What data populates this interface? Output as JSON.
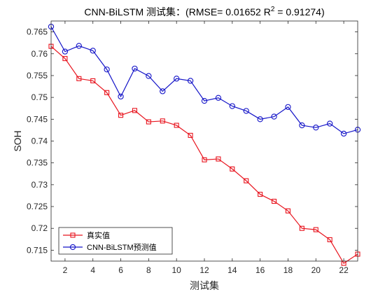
{
  "chart_data": {
    "type": "line",
    "title": "CNN-BiLSTM 测试集：(RMSE= 0.01652 R",
    "title_sup": "2",
    "title_end": " = 0.91274)",
    "xlabel": "测试集",
    "ylabel": "SOH",
    "xlim": [
      1,
      23
    ],
    "ylim": [
      0.7125,
      0.7675
    ],
    "xticks": [
      2,
      4,
      6,
      8,
      10,
      12,
      14,
      16,
      18,
      20,
      22
    ],
    "yticks": [
      0.715,
      0.72,
      0.725,
      0.73,
      0.735,
      0.74,
      0.745,
      0.75,
      0.755,
      0.76,
      0.765
    ],
    "ytick_labels": [
      "0.715",
      "0.72",
      "0.725",
      "0.73",
      "0.735",
      "0.74",
      "0.745",
      "0.75",
      "0.755",
      "0.76",
      "0.765"
    ],
    "grid": false,
    "legend_position": "bottom-left",
    "x": [
      1,
      2,
      3,
      4,
      5,
      6,
      7,
      8,
      9,
      10,
      11,
      12,
      13,
      14,
      15,
      16,
      17,
      18,
      19,
      20,
      21,
      22,
      23
    ],
    "series": [
      {
        "name": "真实值",
        "color": "#e8141e",
        "marker": "square",
        "values": [
          0.7617,
          0.7589,
          0.7543,
          0.7538,
          0.7511,
          0.7459,
          0.747,
          0.7444,
          0.7446,
          0.7436,
          0.7413,
          0.7357,
          0.7359,
          0.7336,
          0.7309,
          0.7278,
          0.7262,
          0.724,
          0.72,
          0.7197,
          0.7174,
          0.712,
          0.7141
        ]
      },
      {
        "name": "CNN-BiLSTM预测值",
        "color": "#1414c8",
        "marker": "circle",
        "values": [
          0.7662,
          0.7605,
          0.7618,
          0.7607,
          0.7564,
          0.7502,
          0.7566,
          0.7549,
          0.7514,
          0.7543,
          0.7538,
          0.7492,
          0.7499,
          0.748,
          0.7469,
          0.745,
          0.7456,
          0.7478,
          0.7436,
          0.7431,
          0.744,
          0.7417,
          0.7426
        ]
      }
    ]
  }
}
